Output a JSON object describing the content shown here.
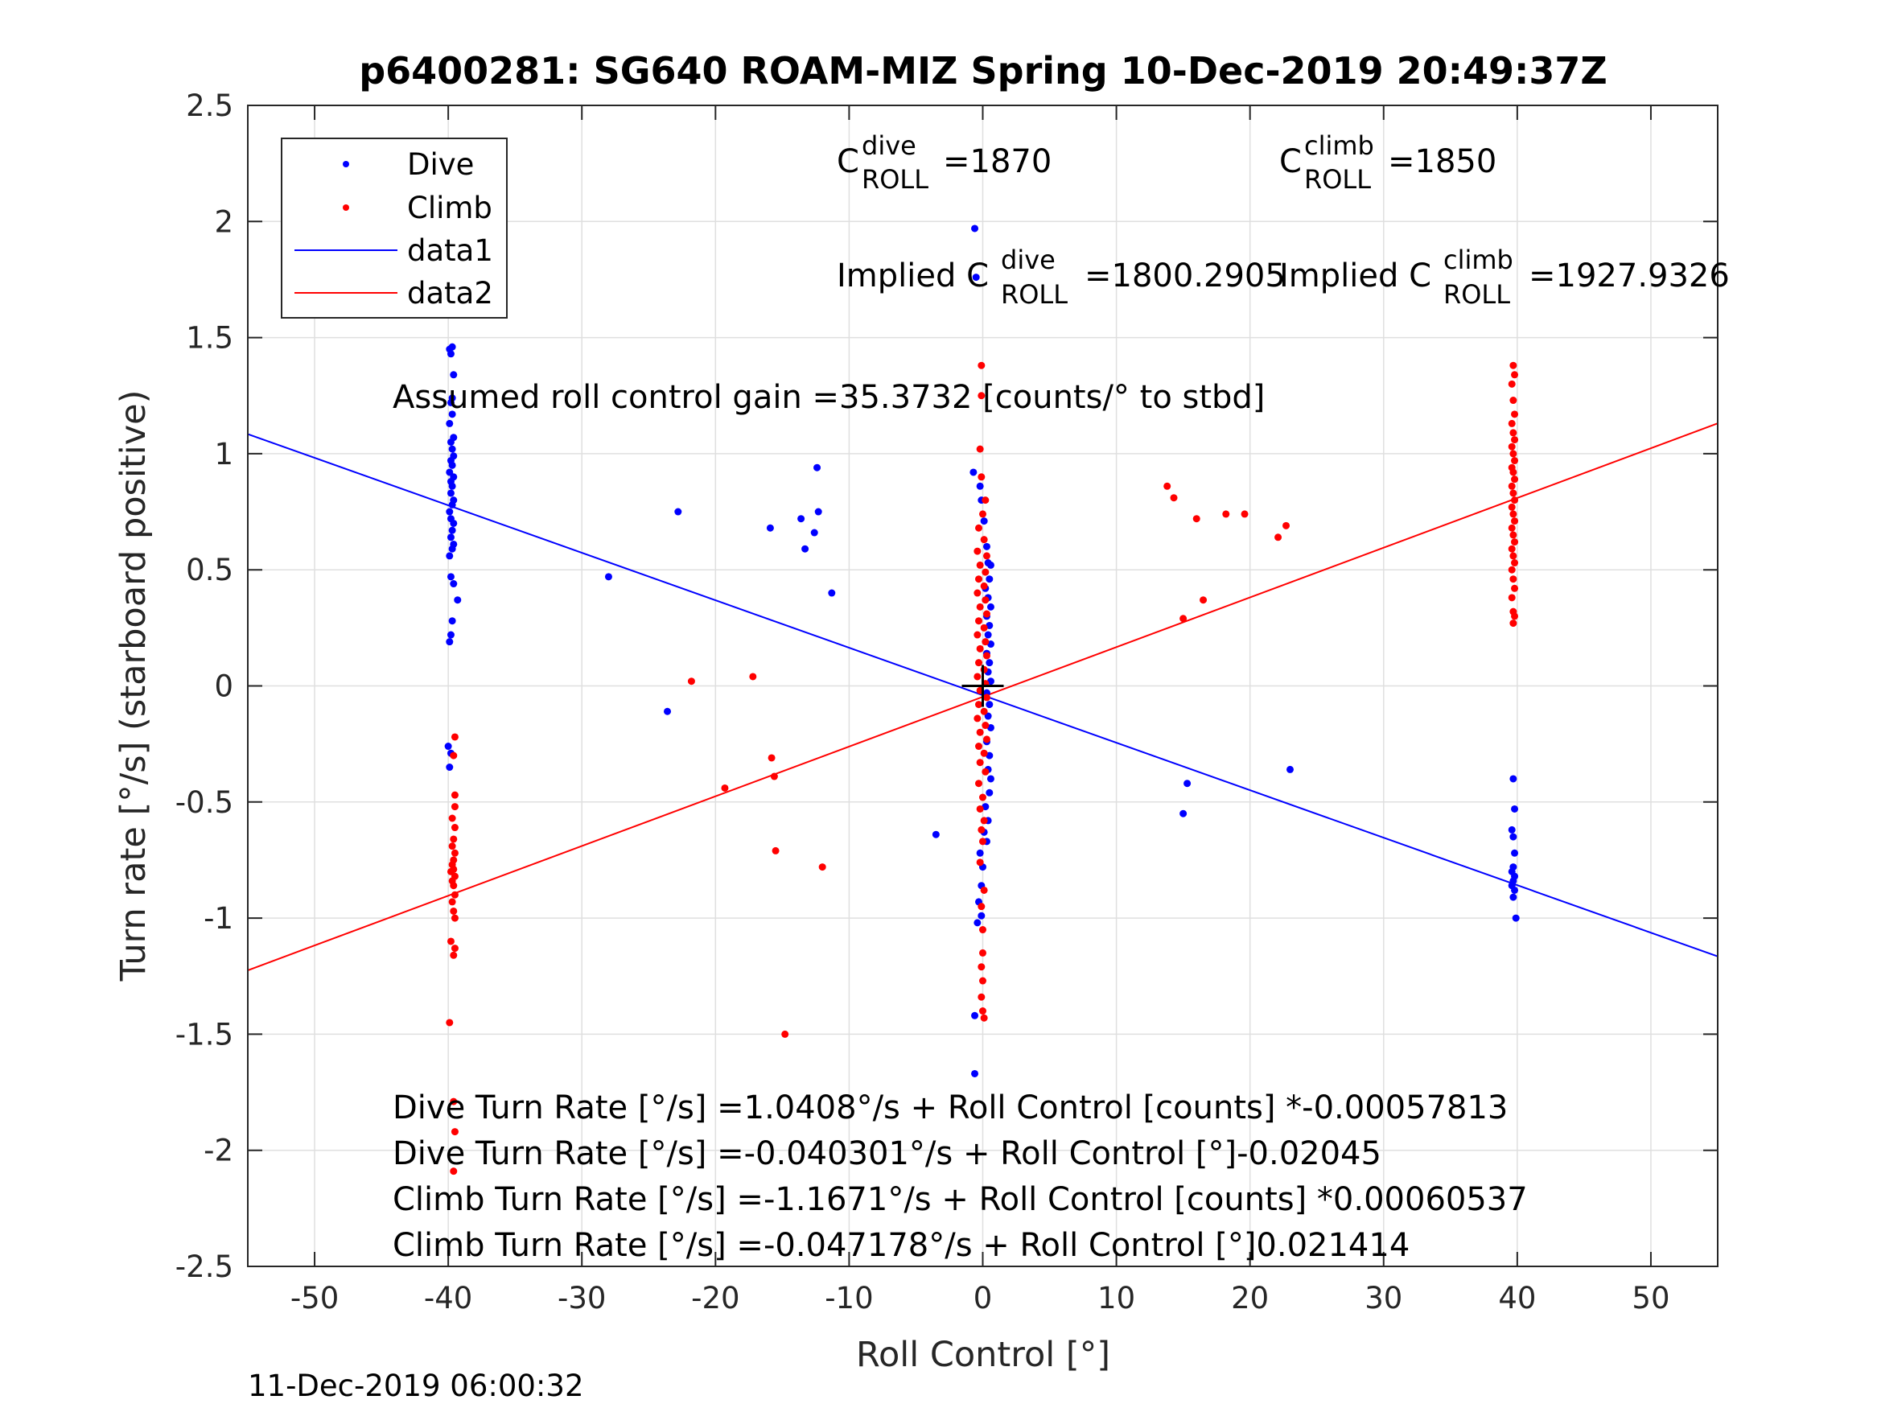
{
  "chart_data": {
    "type": "scatter",
    "title": "p6400281: SG640 ROAM-MIZ Spring 10-Dec-2019 20:49:37Z",
    "xlabel": "Roll Control [°]",
    "ylabel": "Turn rate [°/s] (starboard positive)",
    "xlim": [
      -55,
      55
    ],
    "ylim": [
      -2.5,
      2.5
    ],
    "xticks": [
      -50,
      -40,
      -30,
      -20,
      -10,
      0,
      10,
      20,
      30,
      40,
      50
    ],
    "yticks": [
      2.5,
      2,
      1.5,
      1,
      0.5,
      0,
      -0.5,
      -1,
      -1.5,
      -2,
      -2.5
    ],
    "xtick_labels": [
      "-50",
      "-40",
      "-30",
      "-20",
      "-10",
      "0",
      "10",
      "20",
      "30",
      "40",
      "50"
    ],
    "ytick_labels": [
      "2.5",
      "2",
      "1.5",
      "1",
      "0.5",
      "0",
      "-0.5",
      "-1",
      "-1.5",
      "-2",
      "-2.5"
    ],
    "grid": true,
    "legend": {
      "position": "top-left",
      "entries": [
        {
          "label": "Dive",
          "kind": "marker",
          "color": "#0000ff"
        },
        {
          "label": "Climb",
          "kind": "marker",
          "color": "#ff0000"
        },
        {
          "label": "data1",
          "kind": "line",
          "color": "#0000ff"
        },
        {
          "label": "data2",
          "kind": "line",
          "color": "#ff0000"
        }
      ]
    },
    "colors": {
      "dive": "#0000ff",
      "climb": "#ff0000",
      "origin_marker": "#000000"
    },
    "annotations": {
      "c_dive": {
        "base": "C",
        "sup": "dive",
        "sub": "ROLL",
        "value": "=1870"
      },
      "c_climb": {
        "base": "C",
        "sup": "climb",
        "sub": "ROLL",
        "value": "=1850"
      },
      "implied_dive": {
        "prefix": "Implied C",
        "sup": "dive",
        "sub": "ROLL",
        "value": "=1800.2905"
      },
      "implied_climb": {
        "prefix": "Implied C",
        "sup": "climb",
        "sub": "ROLL",
        "value": "=1927.9326"
      },
      "gain": "Assumed roll control gain =35.3732 [counts/° to stbd]",
      "eq1": "Dive Turn Rate [°/s] =1.0408°/s + Roll Control [counts] *-0.00057813",
      "eq2": "Dive Turn Rate [°/s] =-0.040301°/s + Roll Control [°]-0.02045",
      "eq3": "Climb Turn Rate [°/s] =-1.1671°/s + Roll Control [counts] *0.00060537",
      "eq4": "Climb Turn Rate [°/s] =-0.047178°/s + Roll Control [°]0.021414"
    },
    "timestamp": "11-Dec-2019 06:00:32",
    "fit_lines": [
      {
        "name": "data1",
        "color": "#0000ff",
        "intercept": -0.040301,
        "slope": -0.02045
      },
      {
        "name": "data2",
        "color": "#ff0000",
        "intercept": -0.047178,
        "slope": 0.021414
      }
    ],
    "series": [
      {
        "name": "Dive",
        "color": "#0000ff",
        "points": [
          [
            -39.6,
            1.75
          ],
          [
            -39.7,
            1.46
          ],
          [
            -39.9,
            1.45
          ],
          [
            -39.8,
            1.43
          ],
          [
            -39.6,
            1.34
          ],
          [
            -39.7,
            1.24
          ],
          [
            -39.8,
            1.22
          ],
          [
            -39.7,
            1.17
          ],
          [
            -39.9,
            1.13
          ],
          [
            -39.6,
            1.07
          ],
          [
            -39.8,
            1.05
          ],
          [
            -39.7,
            1.02
          ],
          [
            -39.6,
            0.99
          ],
          [
            -39.8,
            0.97
          ],
          [
            -39.7,
            0.95
          ],
          [
            -39.9,
            0.92
          ],
          [
            -39.6,
            0.9
          ],
          [
            -39.8,
            0.88
          ],
          [
            -39.7,
            0.86
          ],
          [
            -39.8,
            0.83
          ],
          [
            -39.6,
            0.8
          ],
          [
            -39.7,
            0.78
          ],
          [
            -39.9,
            0.75
          ],
          [
            -39.8,
            0.72
          ],
          [
            -39.6,
            0.7
          ],
          [
            -39.7,
            0.67
          ],
          [
            -39.8,
            0.64
          ],
          [
            -39.6,
            0.61
          ],
          [
            -39.7,
            0.59
          ],
          [
            -39.9,
            0.56
          ],
          [
            -39.8,
            0.47
          ],
          [
            -39.6,
            0.44
          ],
          [
            -39.3,
            0.37
          ],
          [
            -39.7,
            0.28
          ],
          [
            -39.8,
            0.22
          ],
          [
            -39.9,
            0.19
          ],
          [
            -40.0,
            -0.26
          ],
          [
            -39.8,
            -0.29
          ],
          [
            -39.9,
            -0.35
          ],
          [
            -28.0,
            0.47
          ],
          [
            -22.8,
            0.75
          ],
          [
            -23.6,
            -0.11
          ],
          [
            -15.9,
            0.68
          ],
          [
            -13.6,
            0.72
          ],
          [
            -13.3,
            0.59
          ],
          [
            -12.6,
            0.66
          ],
          [
            -12.3,
            0.75
          ],
          [
            -12.4,
            0.94
          ],
          [
            -11.3,
            0.4
          ],
          [
            -3.5,
            -0.64
          ],
          [
            -0.6,
            1.97
          ],
          [
            -0.5,
            1.76
          ],
          [
            -0.7,
            0.92
          ],
          [
            -0.2,
            0.86
          ],
          [
            -0.1,
            0.8
          ],
          [
            0.1,
            0.71
          ],
          [
            0.3,
            0.6
          ],
          [
            0.4,
            0.53
          ],
          [
            0.6,
            0.52
          ],
          [
            0.5,
            0.46
          ],
          [
            0.2,
            0.42
          ],
          [
            0.4,
            0.38
          ],
          [
            0.6,
            0.34
          ],
          [
            0.3,
            0.3
          ],
          [
            0.5,
            0.26
          ],
          [
            0.4,
            0.22
          ],
          [
            0.6,
            0.18
          ],
          [
            0.3,
            0.14
          ],
          [
            0.5,
            0.1
          ],
          [
            0.4,
            0.06
          ],
          [
            0.6,
            0.02
          ],
          [
            0.3,
            -0.03
          ],
          [
            0.5,
            -0.08
          ],
          [
            0.4,
            -0.13
          ],
          [
            0.6,
            -0.18
          ],
          [
            0.3,
            -0.24
          ],
          [
            0.5,
            -0.3
          ],
          [
            0.4,
            -0.36
          ],
          [
            0.6,
            -0.4
          ],
          [
            0.5,
            -0.46
          ],
          [
            0.2,
            -0.52
          ],
          [
            0.4,
            -0.58
          ],
          [
            0.1,
            -0.63
          ],
          [
            0.3,
            -0.67
          ],
          [
            -0.2,
            -0.72
          ],
          [
            0.0,
            -0.78
          ],
          [
            -0.1,
            -0.86
          ],
          [
            -0.3,
            -0.93
          ],
          [
            -0.1,
            -0.99
          ],
          [
            -0.4,
            -1.02
          ],
          [
            -0.6,
            -1.42
          ],
          [
            -0.6,
            -1.67
          ],
          [
            15.0,
            -0.55
          ],
          [
            15.3,
            -0.42
          ],
          [
            23.0,
            -0.36
          ],
          [
            39.7,
            -0.4
          ],
          [
            39.8,
            -0.53
          ],
          [
            39.6,
            -0.62
          ],
          [
            39.7,
            -0.65
          ],
          [
            39.8,
            -0.72
          ],
          [
            39.7,
            -0.78
          ],
          [
            39.6,
            -0.8
          ],
          [
            39.8,
            -0.82
          ],
          [
            39.7,
            -0.84
          ],
          [
            39.6,
            -0.86
          ],
          [
            39.8,
            -0.88
          ],
          [
            39.7,
            -0.91
          ],
          [
            39.9,
            -1.0
          ]
        ]
      },
      {
        "name": "Climb",
        "color": "#ff0000",
        "points": [
          [
            -39.5,
            -0.22
          ],
          [
            -39.6,
            -0.3
          ],
          [
            -39.5,
            -0.47
          ],
          [
            -39.5,
            -0.52
          ],
          [
            -39.7,
            -0.57
          ],
          [
            -39.5,
            -0.61
          ],
          [
            -39.6,
            -0.66
          ],
          [
            -39.7,
            -0.69
          ],
          [
            -39.5,
            -0.72
          ],
          [
            -39.6,
            -0.75
          ],
          [
            -39.7,
            -0.77
          ],
          [
            -39.6,
            -0.79
          ],
          [
            -39.8,
            -0.8
          ],
          [
            -39.5,
            -0.82
          ],
          [
            -39.7,
            -0.84
          ],
          [
            -39.6,
            -0.86
          ],
          [
            -39.5,
            -0.9
          ],
          [
            -39.7,
            -0.93
          ],
          [
            -39.6,
            -0.97
          ],
          [
            -39.5,
            -1.0
          ],
          [
            -39.8,
            -1.1
          ],
          [
            -39.5,
            -1.13
          ],
          [
            -39.6,
            -1.16
          ],
          [
            -39.9,
            -1.45
          ],
          [
            -39.6,
            -1.79
          ],
          [
            -39.5,
            -1.92
          ],
          [
            -39.6,
            -2.09
          ],
          [
            -21.8,
            0.02
          ],
          [
            -17.2,
            0.04
          ],
          [
            -19.3,
            -0.44
          ],
          [
            -15.8,
            -0.31
          ],
          [
            -15.6,
            -0.39
          ],
          [
            -15.5,
            -0.71
          ],
          [
            -14.8,
            -1.5
          ],
          [
            -12.0,
            -0.78
          ],
          [
            -0.1,
            1.38
          ],
          [
            -0.1,
            1.25
          ],
          [
            -0.2,
            1.02
          ],
          [
            -0.1,
            0.9
          ],
          [
            0.2,
            0.8
          ],
          [
            0.0,
            0.74
          ],
          [
            -0.3,
            0.68
          ],
          [
            0.1,
            0.63
          ],
          [
            -0.4,
            0.58
          ],
          [
            0.3,
            0.56
          ],
          [
            -0.2,
            0.52
          ],
          [
            0.2,
            0.49
          ],
          [
            -0.3,
            0.46
          ],
          [
            0.1,
            0.43
          ],
          [
            -0.4,
            0.4
          ],
          [
            0.2,
            0.37
          ],
          [
            -0.2,
            0.34
          ],
          [
            0.3,
            0.31
          ],
          [
            -0.3,
            0.28
          ],
          [
            0.1,
            0.25
          ],
          [
            -0.4,
            0.22
          ],
          [
            0.2,
            0.19
          ],
          [
            -0.2,
            0.16
          ],
          [
            0.3,
            0.13
          ],
          [
            -0.3,
            0.1
          ],
          [
            0.1,
            0.07
          ],
          [
            -0.4,
            0.04
          ],
          [
            0.2,
            0.01
          ],
          [
            -0.2,
            -0.02
          ],
          [
            0.3,
            -0.05
          ],
          [
            -0.3,
            -0.08
          ],
          [
            0.1,
            -0.11
          ],
          [
            -0.4,
            -0.14
          ],
          [
            0.2,
            -0.17
          ],
          [
            -0.2,
            -0.2
          ],
          [
            0.3,
            -0.23
          ],
          [
            -0.3,
            -0.26
          ],
          [
            0.1,
            -0.29
          ],
          [
            -0.2,
            -0.33
          ],
          [
            0.2,
            -0.37
          ],
          [
            -0.3,
            -0.42
          ],
          [
            0.0,
            -0.48
          ],
          [
            -0.2,
            -0.53
          ],
          [
            0.1,
            -0.58
          ],
          [
            -0.1,
            -0.62
          ],
          [
            0.0,
            -0.67
          ],
          [
            -0.2,
            -0.76
          ],
          [
            0.1,
            -0.88
          ],
          [
            -0.1,
            -0.95
          ],
          [
            0.0,
            -1.05
          ],
          [
            0.0,
            -1.15
          ],
          [
            -0.1,
            -1.21
          ],
          [
            0.0,
            -1.27
          ],
          [
            -0.1,
            -1.34
          ],
          [
            0.0,
            -1.4
          ],
          [
            0.1,
            -1.43
          ],
          [
            13.8,
            0.86
          ],
          [
            14.3,
            0.81
          ],
          [
            16.0,
            0.72
          ],
          [
            18.2,
            0.74
          ],
          [
            19.6,
            0.74
          ],
          [
            22.1,
            0.64
          ],
          [
            22.7,
            0.69
          ],
          [
            16.5,
            0.37
          ],
          [
            15.0,
            0.29
          ],
          [
            39.7,
            1.38
          ],
          [
            39.8,
            1.34
          ],
          [
            39.6,
            1.3
          ],
          [
            39.7,
            1.23
          ],
          [
            39.8,
            1.17
          ],
          [
            39.6,
            1.13
          ],
          [
            39.7,
            1.09
          ],
          [
            39.8,
            1.06
          ],
          [
            39.6,
            1.03
          ],
          [
            39.7,
            1.0
          ],
          [
            39.8,
            0.97
          ],
          [
            39.6,
            0.94
          ],
          [
            39.7,
            0.92
          ],
          [
            39.8,
            0.89
          ],
          [
            39.6,
            0.86
          ],
          [
            39.7,
            0.83
          ],
          [
            39.8,
            0.8
          ],
          [
            39.6,
            0.77
          ],
          [
            39.7,
            0.74
          ],
          [
            39.8,
            0.71
          ],
          [
            39.6,
            0.68
          ],
          [
            39.7,
            0.65
          ],
          [
            39.8,
            0.62
          ],
          [
            39.6,
            0.59
          ],
          [
            39.7,
            0.56
          ],
          [
            39.8,
            0.53
          ],
          [
            39.6,
            0.5
          ],
          [
            39.7,
            0.46
          ],
          [
            39.8,
            0.42
          ],
          [
            39.6,
            0.38
          ],
          [
            39.7,
            0.32
          ],
          [
            39.8,
            0.3
          ],
          [
            39.7,
            0.27
          ]
        ]
      }
    ]
  }
}
